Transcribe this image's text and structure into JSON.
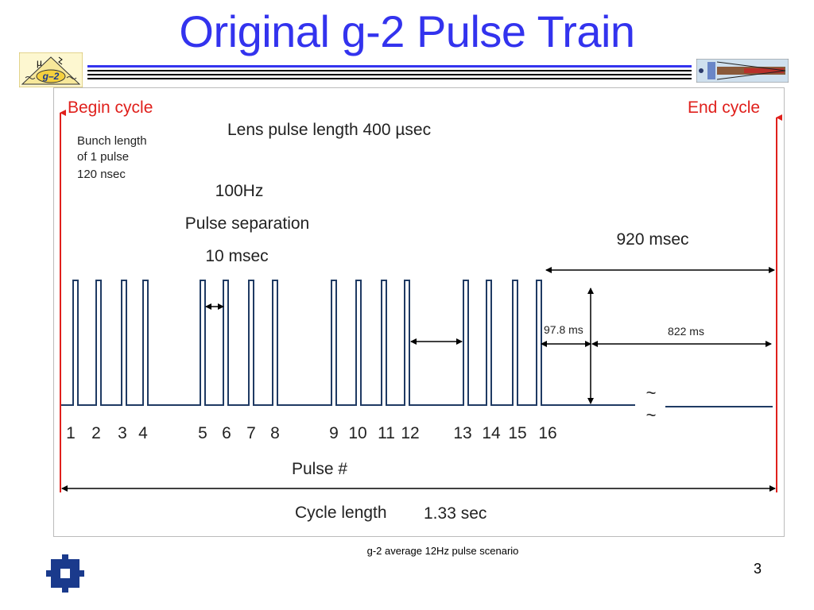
{
  "slide": {
    "title": "Original g-2 Pulse Train",
    "caption": "g-2 average 12Hz pulse scenario",
    "page_number": "3"
  },
  "logos": {
    "left_mu": "μ",
    "left_g2": "g–2"
  },
  "colors": {
    "title": "#3333ee",
    "red_label": "#e0201c",
    "pulse_line": "#1f3a63",
    "fermilab": "#1a3a8c"
  },
  "diagram": {
    "begin_cycle": "Begin cycle",
    "end_cycle": "End cycle",
    "bunch_line1": "Bunch length",
    "bunch_line2": "of 1 pulse",
    "bunch_line3": "120 nsec",
    "lens_pulse": "Lens pulse length  400 µsec",
    "freq": "100Hz",
    "pulse_sep_label": "Pulse separation",
    "pulse_sep_value": "10 msec",
    "t920": "920 msec",
    "t978": "97.8 ms",
    "t822": "822 ms",
    "tilde": "~",
    "pulse_numbers": [
      "1",
      "2",
      "3",
      "4",
      "5",
      "6",
      "7",
      "8",
      "9",
      "10",
      "11",
      "12",
      "13",
      "14",
      "15",
      "16"
    ],
    "pulse_axis_label": "Pulse #",
    "cycle_length_label": "Cycle length",
    "cycle_length_value": "1.33 sec"
  }
}
